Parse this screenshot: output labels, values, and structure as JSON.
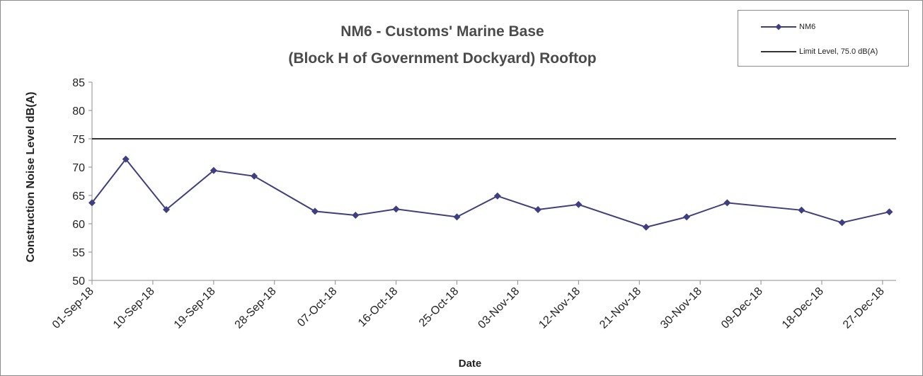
{
  "chart_data": {
    "type": "line",
    "title": "NM6 -  Customs' Marine Base",
    "subtitle": "(Block H of Government Dockyard) Rooftop",
    "xlabel": "Date",
    "ylabel": "Construction Noise Level  dB(A)",
    "ylim": [
      50,
      85
    ],
    "yticks": [
      50,
      55,
      60,
      65,
      70,
      75,
      80,
      85
    ],
    "xticks": [
      "01-Sep-18",
      "10-Sep-18",
      "19-Sep-18",
      "28-Sep-18",
      "07-Oct-18",
      "16-Oct-18",
      "25-Oct-18",
      "03-Nov-18",
      "12-Nov-18",
      "21-Nov-18",
      "30-Nov-18",
      "09-Dec-18",
      "18-Dec-18",
      "27-Dec-18"
    ],
    "xlim": [
      "01-Sep-18",
      "29-Dec-18"
    ],
    "grid": false,
    "legend_position": "top-right",
    "series": [
      {
        "name": "NM6",
        "color": "#3f3f7f",
        "marker": "diamond",
        "points": [
          {
            "x": "01-Sep-18",
            "y": 63.7
          },
          {
            "x": "06-Sep-18",
            "y": 71.4
          },
          {
            "x": "12-Sep-18",
            "y": 62.5
          },
          {
            "x": "19-Sep-18",
            "y": 69.4
          },
          {
            "x": "25-Sep-18",
            "y": 68.4
          },
          {
            "x": "04-Oct-18",
            "y": 62.2
          },
          {
            "x": "10-Oct-18",
            "y": 61.5
          },
          {
            "x": "16-Oct-18",
            "y": 62.6
          },
          {
            "x": "25-Oct-18",
            "y": 61.2
          },
          {
            "x": "31-Oct-18",
            "y": 64.9
          },
          {
            "x": "06-Nov-18",
            "y": 62.5
          },
          {
            "x": "12-Nov-18",
            "y": 63.4
          },
          {
            "x": "22-Nov-18",
            "y": 59.4
          },
          {
            "x": "28-Nov-18",
            "y": 61.2
          },
          {
            "x": "04-Dec-18",
            "y": 63.7
          },
          {
            "x": "15-Dec-18",
            "y": 62.4
          },
          {
            "x": "21-Dec-18",
            "y": 60.2
          },
          {
            "x": "28-Dec-18",
            "y": 62.1
          }
        ]
      },
      {
        "name": "Limit Level, 75.0 dB(A)",
        "color": "#333333",
        "marker": "none",
        "constant": 75.0
      }
    ]
  }
}
